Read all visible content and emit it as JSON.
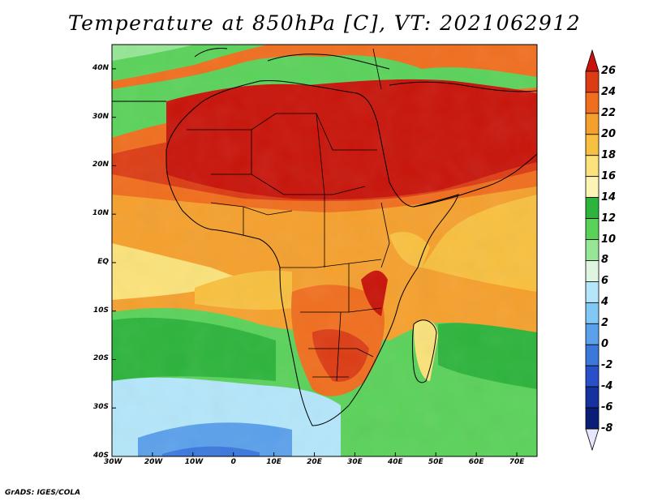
{
  "title": "Temperature at 850hPa [C], VT: 2021062912",
  "credit": "GrADS: IGES/COLA",
  "map": {
    "variable": "Temperature at 850hPa",
    "units": "C",
    "valid_time": "2021062912",
    "lon_range": [
      -30,
      75
    ],
    "lat_range": [
      -40,
      45
    ],
    "lat_labels": [
      "40N",
      "30N",
      "20N",
      "10N",
      "EQ",
      "10S",
      "20S",
      "30S",
      "40S"
    ],
    "lon_labels": [
      "30W",
      "20W",
      "10W",
      "0",
      "10E",
      "20E",
      "30E",
      "40E",
      "50E",
      "60E",
      "70E"
    ]
  },
  "colorbar": {
    "labels": [
      "26",
      "24",
      "22",
      "20",
      "18",
      "16",
      "14",
      "12",
      "10",
      "8",
      "6",
      "4",
      "2",
      "0",
      "-2",
      "-4",
      "-6",
      "-8"
    ],
    "colors": [
      "#c8140a",
      "#dc3c14",
      "#f06e1e",
      "#f5a02d",
      "#f8c040",
      "#fbe27a",
      "#fcf4b4",
      "#2db43c",
      "#5ad25a",
      "#96e696",
      "#e0f5e0",
      "#b4e6fa",
      "#82c8f5",
      "#5aa0eb",
      "#3c78dc",
      "#2850c8",
      "#1432a0",
      "#0a1e78",
      "#e6e6ff"
    ]
  }
}
